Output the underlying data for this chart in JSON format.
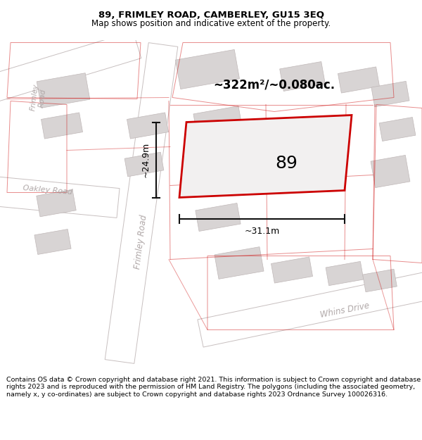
{
  "title": "89, FRIMLEY ROAD, CAMBERLEY, GU15 3EQ",
  "subtitle": "Map shows position and indicative extent of the property.",
  "footer": "Contains OS data © Crown copyright and database right 2021. This information is subject to Crown copyright and database rights 2023 and is reproduced with the permission of HM Land Registry. The polygons (including the associated geometry, namely x, y co-ordinates) are subject to Crown copyright and database rights 2023 Ordnance Survey 100026316.",
  "area_label": "~322m²/~0.080ac.",
  "width_label": "~31.1m",
  "height_label": "~24.9m",
  "property_number": "89",
  "bg_color": "#ffffff",
  "map_bg_color": "#f2f0f0",
  "road_color": "#ffffff",
  "building_color": "#d8d4d4",
  "building_outline_color": "#c0b8b8",
  "property_outline_color": "#cc0000",
  "property_fill_color": "#f2f0f0",
  "street_label_color": "#b0a8a8",
  "dim_line_color": "#111111",
  "title_color": "#000000",
  "footer_color": "#000000",
  "road_edge_color": "#c8c0c0",
  "fig_width": 6.0,
  "fig_height": 6.25,
  "title_fontsize": 9.5,
  "subtitle_fontsize": 8.5,
  "footer_fontsize": 6.8
}
